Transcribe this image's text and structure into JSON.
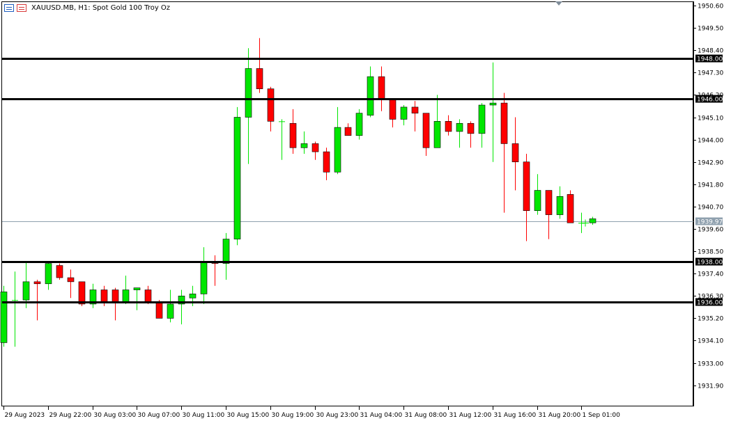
{
  "header": {
    "title": "XAUUSD.MB, H1:  Spot Gold 100 Troy Oz",
    "icon_left": "chart-window-icon",
    "icon_right": "trade-signal-icon"
  },
  "colors": {
    "bull": "#00e600",
    "bear": "#ff0000",
    "level_line": "#000000",
    "bid_line": "#8fa0ae",
    "axis": "#000000"
  },
  "chart_data": {
    "type": "candlestick",
    "symbol": "XAUUSD.MB",
    "timeframe": "H1",
    "ylim": [
      1931.1,
      1950.8
    ],
    "y_ticks": [
      "1950.60",
      "1949.50",
      "1948.40",
      "1947.30",
      "1946.20",
      "1945.10",
      "1944.00",
      "1942.90",
      "1941.80",
      "1940.70",
      "1939.60",
      "1938.50",
      "1937.40",
      "1936.30",
      "1935.20",
      "1934.10",
      "1933.00",
      "1931.90"
    ],
    "x_ticks": [
      {
        "label": "29 Aug 2023",
        "index": 0
      },
      {
        "label": "29 Aug 22:00",
        "index": 4
      },
      {
        "label": "30 Aug 03:00",
        "index": 8
      },
      {
        "label": "30 Aug 07:00",
        "index": 12
      },
      {
        "label": "30 Aug 11:00",
        "index": 16
      },
      {
        "label": "30 Aug 15:00",
        "index": 20
      },
      {
        "label": "30 Aug 19:00",
        "index": 24
      },
      {
        "label": "30 Aug 23:00",
        "index": 28
      },
      {
        "label": "31 Aug 04:00",
        "index": 32
      },
      {
        "label": "31 Aug 08:00",
        "index": 36
      },
      {
        "label": "31 Aug 12:00",
        "index": 40
      },
      {
        "label": "31 Aug 16:00",
        "index": 44
      },
      {
        "label": "31 Aug 20:00",
        "index": 48
      },
      {
        "label": "1 Sep 01:00",
        "index": 52
      }
    ],
    "horizontal_levels": [
      {
        "value": 1948.0,
        "label": "1948.00"
      },
      {
        "value": 1946.0,
        "label": "1946.00"
      },
      {
        "value": 1938.0,
        "label": "1938.00"
      },
      {
        "value": 1936.0,
        "label": "1936.00"
      }
    ],
    "bid": {
      "value": 1939.97,
      "label": "1939.97"
    },
    "candles": [
      {
        "o": 1934.0,
        "h": 1936.8,
        "l": 1933.8,
        "c": 1936.5
      },
      {
        "o": 1936.1,
        "h": 1937.5,
        "l": 1933.8,
        "c": 1936.1
      },
      {
        "o": 1936.1,
        "h": 1938.0,
        "l": 1935.7,
        "c": 1937.0
      },
      {
        "o": 1937.0,
        "h": 1937.1,
        "l": 1935.1,
        "c": 1936.9
      },
      {
        "o": 1936.9,
        "h": 1938.0,
        "l": 1936.6,
        "c": 1937.9
      },
      {
        "o": 1937.8,
        "h": 1937.9,
        "l": 1937.1,
        "c": 1937.2
      },
      {
        "o": 1937.2,
        "h": 1937.6,
        "l": 1936.2,
        "c": 1937.0
      },
      {
        "o": 1937.0,
        "h": 1937.0,
        "l": 1935.8,
        "c": 1935.9
      },
      {
        "o": 1935.9,
        "h": 1936.9,
        "l": 1935.7,
        "c": 1936.6
      },
      {
        "o": 1936.6,
        "h": 1936.8,
        "l": 1935.8,
        "c": 1936.0
      },
      {
        "o": 1936.6,
        "h": 1936.7,
        "l": 1935.1,
        "c": 1936.0
      },
      {
        "o": 1936.0,
        "h": 1937.3,
        "l": 1935.9,
        "c": 1936.6
      },
      {
        "o": 1936.6,
        "h": 1936.7,
        "l": 1935.6,
        "c": 1936.7
      },
      {
        "o": 1936.6,
        "h": 1936.8,
        "l": 1935.9,
        "c": 1936.0
      },
      {
        "o": 1936.0,
        "h": 1936.1,
        "l": 1935.2,
        "c": 1935.2
      },
      {
        "o": 1935.2,
        "h": 1936.6,
        "l": 1935.0,
        "c": 1935.9
      },
      {
        "o": 1935.9,
        "h": 1936.6,
        "l": 1934.9,
        "c": 1936.3
      },
      {
        "o": 1936.2,
        "h": 1936.8,
        "l": 1935.8,
        "c": 1936.4
      },
      {
        "o": 1936.4,
        "h": 1938.7,
        "l": 1935.9,
        "c": 1938.0
      },
      {
        "o": 1938.0,
        "h": 1938.3,
        "l": 1936.8,
        "c": 1937.9
      },
      {
        "o": 1937.9,
        "h": 1939.4,
        "l": 1937.1,
        "c": 1939.1
      },
      {
        "o": 1939.1,
        "h": 1945.6,
        "l": 1938.8,
        "c": 1945.1
      },
      {
        "o": 1945.1,
        "h": 1948.5,
        "l": 1942.8,
        "c": 1947.5
      },
      {
        "o": 1947.5,
        "h": 1949.0,
        "l": 1946.3,
        "c": 1946.5
      },
      {
        "o": 1946.5,
        "h": 1946.6,
        "l": 1944.4,
        "c": 1944.9
      },
      {
        "o": 1944.9,
        "h": 1945.0,
        "l": 1943.0,
        "c": 1944.9
      },
      {
        "o": 1944.8,
        "h": 1945.5,
        "l": 1943.3,
        "c": 1943.6
      },
      {
        "o": 1943.6,
        "h": 1944.4,
        "l": 1943.3,
        "c": 1943.8
      },
      {
        "o": 1943.8,
        "h": 1943.9,
        "l": 1943.0,
        "c": 1943.4
      },
      {
        "o": 1943.4,
        "h": 1943.6,
        "l": 1942.0,
        "c": 1942.4
      },
      {
        "o": 1942.4,
        "h": 1945.6,
        "l": 1942.3,
        "c": 1944.6
      },
      {
        "o": 1944.6,
        "h": 1944.8,
        "l": 1944.2,
        "c": 1944.2
      },
      {
        "o": 1944.2,
        "h": 1945.5,
        "l": 1944.0,
        "c": 1945.3
      },
      {
        "o": 1945.2,
        "h": 1947.6,
        "l": 1945.1,
        "c": 1947.1
      },
      {
        "o": 1947.1,
        "h": 1947.6,
        "l": 1945.4,
        "c": 1946.0
      },
      {
        "o": 1946.0,
        "h": 1946.0,
        "l": 1944.6,
        "c": 1945.0
      },
      {
        "o": 1945.0,
        "h": 1945.7,
        "l": 1944.7,
        "c": 1945.6
      },
      {
        "o": 1945.6,
        "h": 1945.9,
        "l": 1944.4,
        "c": 1945.3
      },
      {
        "o": 1945.3,
        "h": 1945.3,
        "l": 1943.2,
        "c": 1943.6
      },
      {
        "o": 1943.6,
        "h": 1946.2,
        "l": 1943.6,
        "c": 1944.9
      },
      {
        "o": 1944.9,
        "h": 1945.2,
        "l": 1944.2,
        "c": 1944.4
      },
      {
        "o": 1944.4,
        "h": 1945.0,
        "l": 1943.6,
        "c": 1944.8
      },
      {
        "o": 1944.8,
        "h": 1944.9,
        "l": 1943.6,
        "c": 1944.3
      },
      {
        "o": 1944.3,
        "h": 1945.8,
        "l": 1943.6,
        "c": 1945.7
      },
      {
        "o": 1945.7,
        "h": 1947.8,
        "l": 1942.9,
        "c": 1945.8
      },
      {
        "o": 1945.8,
        "h": 1946.3,
        "l": 1940.4,
        "c": 1943.8
      },
      {
        "o": 1943.8,
        "h": 1945.1,
        "l": 1941.5,
        "c": 1942.9
      },
      {
        "o": 1942.9,
        "h": 1943.3,
        "l": 1939.0,
        "c": 1940.5
      },
      {
        "o": 1940.5,
        "h": 1942.3,
        "l": 1940.3,
        "c": 1941.5
      },
      {
        "o": 1941.5,
        "h": 1941.5,
        "l": 1939.1,
        "c": 1940.3
      },
      {
        "o": 1940.3,
        "h": 1941.7,
        "l": 1940.1,
        "c": 1941.2
      },
      {
        "o": 1941.3,
        "h": 1941.5,
        "l": 1939.9,
        "c": 1939.9
      },
      {
        "o": 1939.9,
        "h": 1940.4,
        "l": 1939.4,
        "c": 1939.9
      },
      {
        "o": 1939.9,
        "h": 1940.2,
        "l": 1939.8,
        "c": 1940.1
      }
    ]
  }
}
